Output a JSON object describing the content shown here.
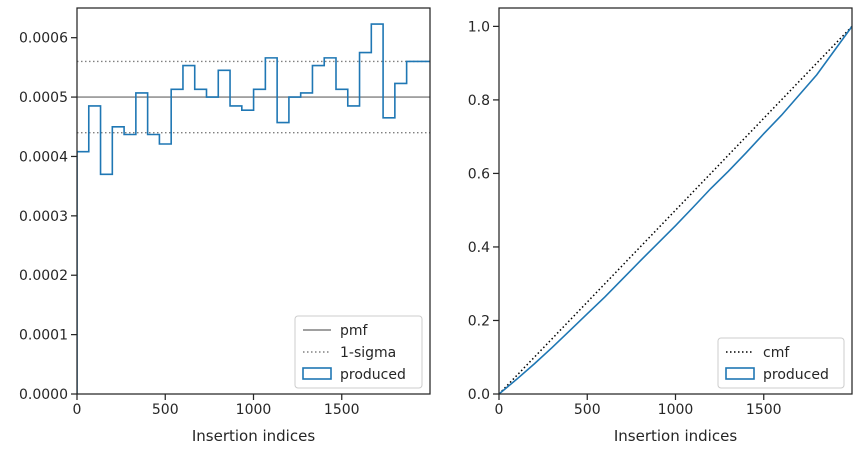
{
  "chart_data": [
    {
      "type": "step",
      "xlabel": "Insertion indices",
      "ylabel": "",
      "xlim": [
        0,
        2000
      ],
      "ylim": [
        0,
        0.00065
      ],
      "xticks": [
        "0",
        "500",
        "1000",
        "1500"
      ],
      "yticks": [
        "0.0000",
        "0.0001",
        "0.0002",
        "0.0003",
        "0.0004",
        "0.0005",
        "0.0006"
      ],
      "legend_position": "bottom-right",
      "legend": [
        "pmf",
        "1-sigma",
        "produced"
      ],
      "reference_lines": [
        {
          "name": "pmf",
          "value": 0.0005,
          "style": "solid",
          "color": "#808080"
        },
        {
          "name": "1-sigma",
          "value": 0.00056,
          "style": "dotted",
          "color": "#808080"
        },
        {
          "name": "1-sigma",
          "value": 0.00044,
          "style": "dotted",
          "color": "#808080"
        }
      ],
      "series": [
        {
          "name": "produced",
          "color": "#1f77b4",
          "bin_width": 66.7,
          "values": [
            0.000408,
            0.000485,
            0.00037,
            0.00045,
            0.000437,
            0.000507,
            0.000437,
            0.000421,
            0.000513,
            0.000553,
            0.000513,
            0.0005,
            0.000545,
            0.000485,
            0.000478,
            0.000513,
            0.000566,
            0.000457,
            0.0005,
            0.000507,
            0.000553,
            0.000566,
            0.000513,
            0.000485,
            0.000575,
            0.000623,
            0.000465,
            0.000523,
            0.00056,
            0.00056
          ]
        }
      ]
    },
    {
      "type": "line",
      "xlabel": "Insertion indices",
      "ylabel": "",
      "xlim": [
        0,
        2000
      ],
      "ylim": [
        0,
        1.05
      ],
      "xticks": [
        "0",
        "500",
        "1000",
        "1500"
      ],
      "yticks": [
        "0.0",
        "0.2",
        "0.4",
        "0.6",
        "0.8",
        "1.0"
      ],
      "legend_position": "bottom-right",
      "legend": [
        "cmf",
        "produced"
      ],
      "series": [
        {
          "name": "cmf",
          "style": "dotted",
          "color": "#000000",
          "x": [
            0,
            2000
          ],
          "y": [
            0,
            1.0
          ]
        },
        {
          "name": "produced",
          "color": "#1f77b4",
          "x": [
            0,
            100,
            200,
            300,
            400,
            500,
            600,
            700,
            800,
            900,
            1000,
            1100,
            1200,
            1300,
            1400,
            1500,
            1600,
            1700,
            1800,
            1900,
            2000
          ],
          "y": [
            0,
            0.04,
            0.082,
            0.126,
            0.172,
            0.218,
            0.264,
            0.313,
            0.362,
            0.41,
            0.458,
            0.508,
            0.559,
            0.606,
            0.656,
            0.708,
            0.758,
            0.813,
            0.868,
            0.934,
            1.0
          ]
        }
      ]
    }
  ]
}
